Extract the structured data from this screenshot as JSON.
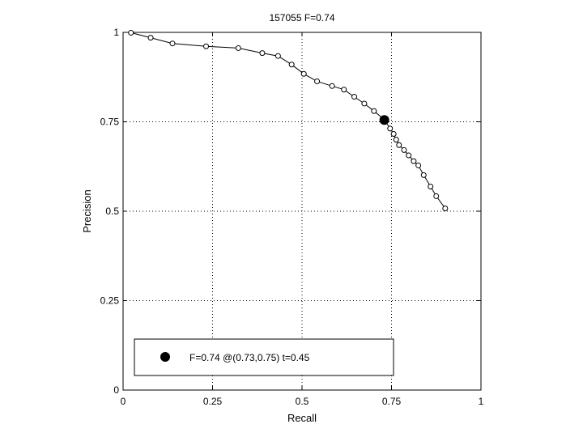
{
  "chart_data": {
    "type": "line",
    "title": "157055 F=0.74",
    "xlabel": "Recall",
    "ylabel": "Precision",
    "xlim": [
      0,
      1
    ],
    "ylim": [
      0,
      1
    ],
    "xticks": [
      0,
      0.25,
      0.5,
      0.75,
      1
    ],
    "yticks": [
      0,
      0.25,
      0.5,
      0.75,
      1
    ],
    "xtick_labels": [
      "0",
      "0.25",
      "0.5",
      "0.75",
      "1"
    ],
    "ytick_labels": [
      "0",
      "0.25",
      "0.5",
      "0.75",
      "1"
    ],
    "grid": true,
    "grid_style": "dotted",
    "legend_placement": "bottom-left",
    "series": [
      {
        "marker": "open-circle",
        "x": [
          0.022,
          0.077,
          0.138,
          0.232,
          0.322,
          0.389,
          0.433,
          0.471,
          0.505,
          0.542,
          0.584,
          0.617,
          0.646,
          0.674,
          0.701,
          0.731,
          0.746,
          0.756,
          0.763,
          0.771,
          0.785,
          0.798,
          0.812,
          0.825,
          0.84,
          0.859,
          0.875,
          0.9
        ],
        "y": [
          0.999,
          0.985,
          0.969,
          0.961,
          0.956,
          0.942,
          0.934,
          0.91,
          0.884,
          0.863,
          0.85,
          0.84,
          0.82,
          0.801,
          0.78,
          0.755,
          0.731,
          0.716,
          0.7,
          0.685,
          0.671,
          0.656,
          0.64,
          0.628,
          0.601,
          0.569,
          0.542,
          0.508
        ]
      }
    ],
    "highlight_point": {
      "x": 0.73,
      "y": 0.755,
      "marker": "filled-circle"
    },
    "legend": {
      "entries": [
        {
          "marker": "filled-circle",
          "label": "F=0.74 @(0.73,0.75) t=0.45"
        }
      ]
    },
    "colors": {
      "line": "#000000",
      "background": "#ffffff"
    }
  }
}
